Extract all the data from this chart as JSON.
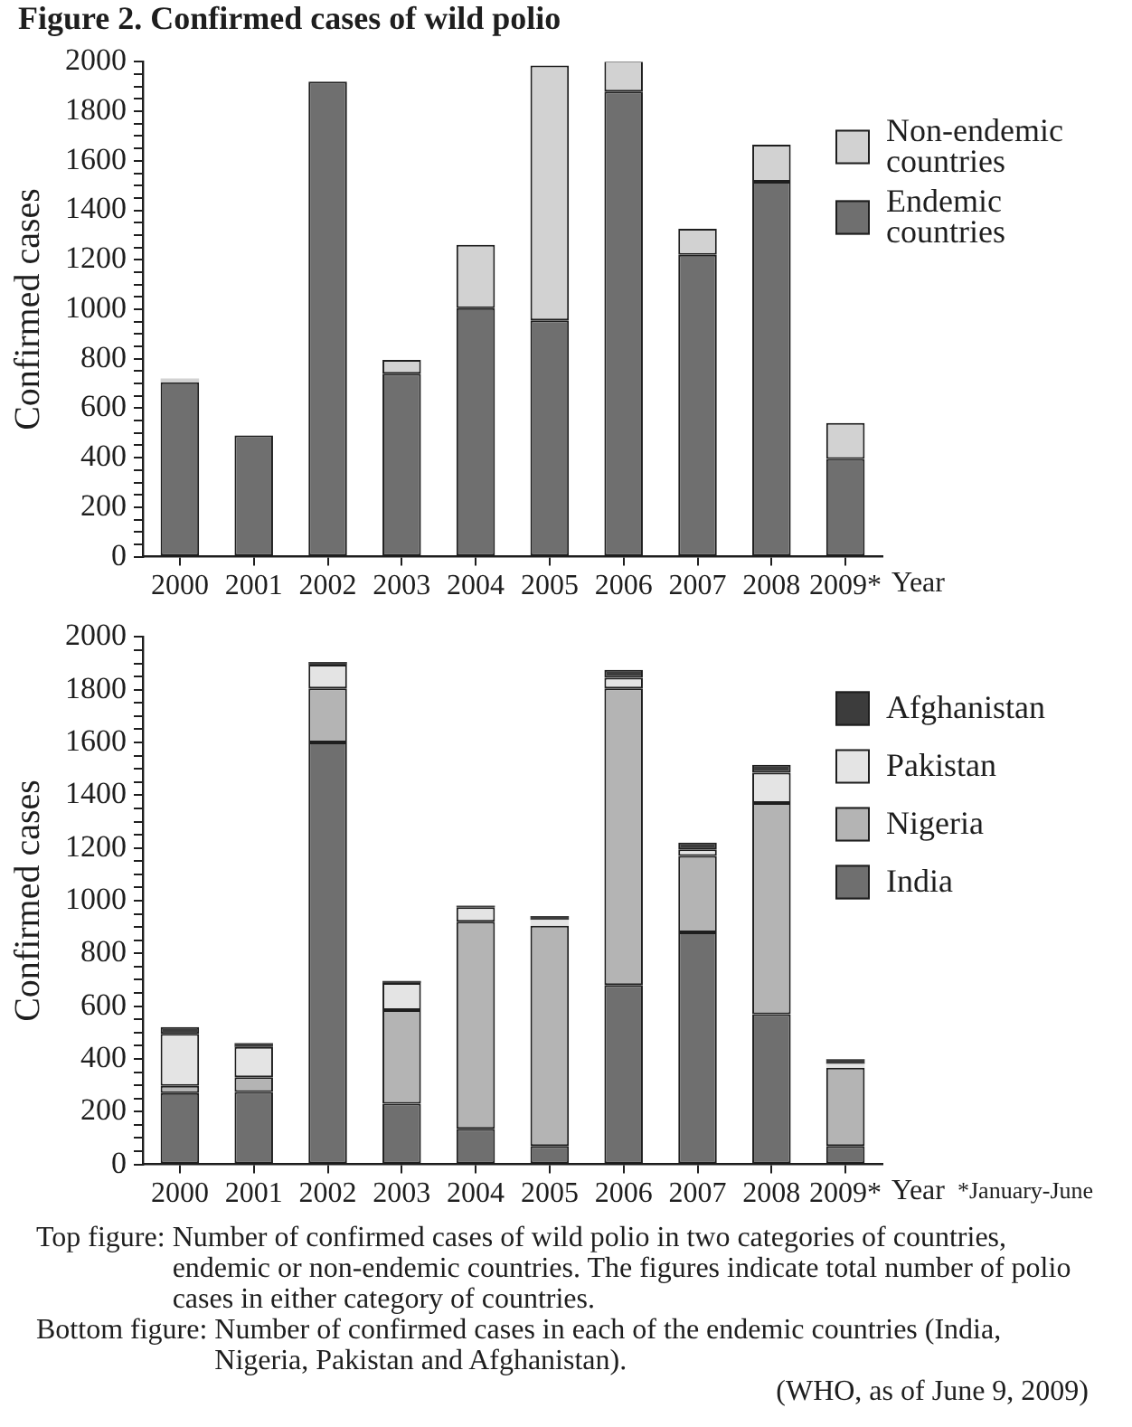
{
  "chart_data": [
    {
      "type": "bar",
      "title": "Figure 2. Confirmed cases of wild polio",
      "stacked": true,
      "categories": [
        "2000",
        "2001",
        "2002",
        "2003",
        "2004",
        "2005",
        "2006",
        "2007",
        "2008",
        "2009*"
      ],
      "series": [
        {
          "name": "Endemic countries",
          "color": "#6f6f6f",
          "values": [
            705,
            490,
            1920,
            740,
            1005,
            955,
            1880,
            1220,
            1515,
            395
          ]
        },
        {
          "name": "Non-endemic countries",
          "color": "#d2d2d2",
          "values": [
            15,
            0,
            0,
            55,
            255,
            1030,
            125,
            105,
            150,
            145
          ]
        }
      ],
      "xlabel": "Year",
      "ylabel": "Confirmed cases",
      "ylim": [
        0,
        2000
      ],
      "yticks": [
        0,
        {
          "value": 50,
          "label": null
        },
        {
          "value": 100,
          "label": null
        },
        {
          "value": 150,
          "label": null
        },
        200,
        {
          "value": 250,
          "label": null
        },
        {
          "value": 300,
          "label": null
        },
        {
          "value": 350,
          "label": null
        },
        400,
        {
          "value": 450,
          "label": null
        },
        {
          "value": 500,
          "label": null
        },
        {
          "value": 550,
          "label": null
        },
        600,
        {
          "value": 650,
          "label": null
        },
        {
          "value": 700,
          "label": null
        },
        {
          "value": 750,
          "label": null
        },
        800,
        {
          "value": 850,
          "label": null
        },
        {
          "value": 900,
          "label": null
        },
        {
          "value": 950,
          "label": null
        },
        1000,
        {
          "value": 1050,
          "label": null
        },
        {
          "value": 1100,
          "label": null
        },
        {
          "value": 1150,
          "label": null
        },
        1200,
        {
          "value": 1250,
          "label": null
        },
        {
          "value": 1300,
          "label": null
        },
        {
          "value": 1350,
          "label": null
        },
        1400,
        {
          "value": 1450,
          "label": null
        },
        {
          "value": 1500,
          "label": null
        },
        {
          "value": 1550,
          "label": null
        },
        1600,
        {
          "value": 1650,
          "label": null
        },
        {
          "value": 1700,
          "label": null
        },
        {
          "value": 1750,
          "label": null
        },
        1800,
        {
          "value": 1850,
          "label": null
        },
        {
          "value": 1900,
          "label": null
        },
        {
          "value": 1950,
          "label": null
        },
        2000
      ],
      "legend": "top right"
    },
    {
      "type": "bar",
      "stacked": true,
      "categories": [
        "2000",
        "2001",
        "2002",
        "2003",
        "2004",
        "2005",
        "2006",
        "2007",
        "2008",
        "2009*"
      ],
      "series": [
        {
          "name": "India",
          "color": "#6f6f6f",
          "values": [
            270,
            275,
            1600,
            230,
            135,
            70,
            680,
            880,
            570,
            70
          ]
        },
        {
          "name": "Nigeria",
          "color": "#b4b4b4",
          "values": [
            28,
            55,
            205,
            355,
            785,
            835,
            1125,
            290,
            800,
            296
          ]
        },
        {
          "name": "Pakistan",
          "color": "#e4e4e4",
          "values": [
            197,
            115,
            90,
            103,
            55,
            22,
            40,
            25,
            115,
            15
          ]
        },
        {
          "name": "Afghanistan",
          "color": "#3c3c3c",
          "values": [
            26,
            15,
            10,
            8,
            6,
            15,
            30,
            25,
            30,
            18
          ]
        }
      ],
      "xlabel": "Year",
      "ylabel": "Confirmed cases",
      "ylim": [
        0,
        2000
      ],
      "yticks": [
        0,
        {
          "value": 50,
          "label": null
        },
        {
          "value": 100,
          "label": null
        },
        {
          "value": 150,
          "label": null
        },
        200,
        {
          "value": 250,
          "label": null
        },
        {
          "value": 300,
          "label": null
        },
        {
          "value": 350,
          "label": null
        },
        400,
        {
          "value": 450,
          "label": null
        },
        {
          "value": 500,
          "label": null
        },
        {
          "value": 550,
          "label": null
        },
        600,
        {
          "value": 650,
          "label": null
        },
        {
          "value": 700,
          "label": null
        },
        {
          "value": 750,
          "label": null
        },
        800,
        {
          "value": 850,
          "label": null
        },
        {
          "value": 900,
          "label": null
        },
        {
          "value": 950,
          "label": null
        },
        1000,
        {
          "value": 1050,
          "label": null
        },
        {
          "value": 1100,
          "label": null
        },
        {
          "value": 1150,
          "label": null
        },
        1200,
        {
          "value": 1250,
          "label": null
        },
        {
          "value": 1300,
          "label": null
        },
        {
          "value": 1350,
          "label": null
        },
        1400,
        {
          "value": 1450,
          "label": null
        },
        {
          "value": 1500,
          "label": null
        },
        {
          "value": 1550,
          "label": null
        },
        1600,
        {
          "value": 1650,
          "label": null
        },
        {
          "value": 1700,
          "label": null
        },
        {
          "value": 1750,
          "label": null
        },
        1800,
        {
          "value": 1850,
          "label": null
        },
        {
          "value": 1900,
          "label": null
        },
        {
          "value": 1950,
          "label": null
        },
        2000
      ],
      "legend": "top right",
      "annotations": [
        "*January-June",
        "Top figure: Number of confirmed cases of wild polio in two categories of countries, endemic or non-endemic countries. The figures indicate total number of polio cases in either category of countries.",
        "Bottom figure: Number of confirmed cases in each of the endemic countries (India, Nigeria, Pakistan and Afghanistan).",
        "(WHO, as of June 9, 2009)"
      ]
    }
  ]
}
